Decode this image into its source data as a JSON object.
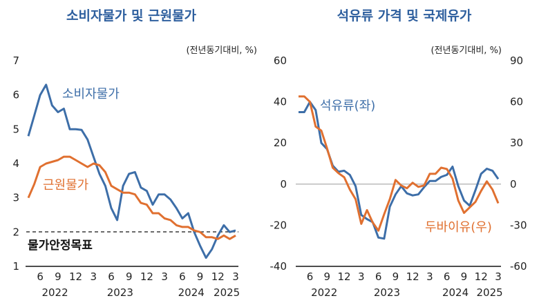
{
  "colors": {
    "title": "#2e5f9e",
    "blue": "#3d6ea8",
    "orange": "#e07030",
    "zero_line": "#bbbbbb"
  },
  "chart_data": [
    {
      "type": "line",
      "title": "소비자물가 및 근원물가",
      "unit_label": "(전년동기대비,  %)",
      "x": [
        "2022-04",
        "2022-05",
        "2022-06",
        "2022-07",
        "2022-08",
        "2022-09",
        "2022-10",
        "2022-11",
        "2022-12",
        "2023-01",
        "2023-02",
        "2023-03",
        "2023-04",
        "2023-05",
        "2023-06",
        "2023-07",
        "2023-08",
        "2023-09",
        "2023-10",
        "2023-11",
        "2023-12",
        "2024-01",
        "2024-02",
        "2024-03",
        "2024-04",
        "2024-05",
        "2024-06",
        "2024-07",
        "2024-08",
        "2024-09",
        "2024-10",
        "2024-11",
        "2024-12",
        "2025-01",
        "2025-02",
        "2025-03"
      ],
      "month_ticks": [
        "6",
        "9",
        "12",
        "3",
        "6",
        "9",
        "12",
        "3",
        "6",
        "9",
        "12",
        "3"
      ],
      "year_ticks": [
        "2022",
        "2023",
        "2024",
        "2025"
      ],
      "ylim": [
        1,
        7
      ],
      "yticks": [
        1,
        2,
        3,
        4,
        5,
        6,
        7
      ],
      "series": [
        {
          "name": "소비자물가",
          "color": "#3d6ea8",
          "values": [
            4.8,
            5.4,
            6.0,
            6.3,
            5.7,
            5.5,
            5.6,
            5.0,
            5.0,
            4.98,
            4.7,
            4.2,
            3.7,
            3.35,
            2.7,
            2.35,
            3.35,
            3.7,
            3.75,
            3.3,
            3.2,
            2.8,
            3.1,
            3.1,
            2.95,
            2.7,
            2.4,
            2.55,
            2.0,
            1.6,
            1.25,
            1.5,
            1.9,
            2.2,
            2.0,
            2.05
          ]
        },
        {
          "name": "근원물가",
          "color": "#e07030",
          "values": [
            3.0,
            3.4,
            3.9,
            4.0,
            4.05,
            4.1,
            4.2,
            4.2,
            4.1,
            4.0,
            3.9,
            4.0,
            3.95,
            3.75,
            3.35,
            3.25,
            3.15,
            3.15,
            3.1,
            2.85,
            2.8,
            2.55,
            2.55,
            2.4,
            2.35,
            2.2,
            2.15,
            2.15,
            2.05,
            2.0,
            1.85,
            1.85,
            1.8,
            1.9,
            1.8,
            1.9
          ]
        }
      ],
      "reference_line": {
        "label": "물가안정목표",
        "value": 2
      }
    },
    {
      "type": "line",
      "title": "석유류 가격 및 국제유가",
      "unit_label": "(전년동기대비,  %)",
      "month_ticks": [
        "6",
        "9",
        "12",
        "3",
        "6",
        "9",
        "12",
        "3",
        "6",
        "9",
        "12",
        "3"
      ],
      "year_ticks": [
        "2022",
        "2023",
        "2024",
        "2025"
      ],
      "ylim_left": [
        -40,
        60
      ],
      "yticks_left": [
        -40,
        -20,
        0,
        20,
        40,
        60
      ],
      "ylim_right": [
        -60,
        90
      ],
      "yticks_right": [
        -60,
        -30,
        0,
        30,
        60,
        90
      ],
      "series": [
        {
          "name": "석유류(좌)",
          "axis": "left",
          "color": "#3d6ea8",
          "values": [
            35,
            35,
            40,
            36,
            20,
            17,
            9,
            6,
            6.5,
            4.5,
            -1,
            -15,
            -17,
            -18.5,
            -26,
            -26.5,
            -11,
            -5,
            -1,
            -4.5,
            -5.5,
            -5,
            -1.5,
            1.5,
            1.5,
            3.5,
            4.5,
            8.5,
            -1,
            -8,
            -10.5,
            -3,
            5,
            7.5,
            6.5,
            2.5
          ]
        },
        {
          "name": "두바이유(우)",
          "axis": "right",
          "color": "#e07030",
          "values": [
            64,
            64,
            60,
            42,
            39,
            26,
            12,
            8,
            5,
            -4,
            -11,
            -29,
            -19,
            -28,
            -34,
            -22,
            -11,
            3,
            -1,
            -3,
            1,
            -2,
            -1,
            7.5,
            7.5,
            12,
            11,
            4,
            -12,
            -21,
            -17,
            -13,
            -5,
            2,
            -4,
            -14
          ]
        }
      ]
    }
  ]
}
